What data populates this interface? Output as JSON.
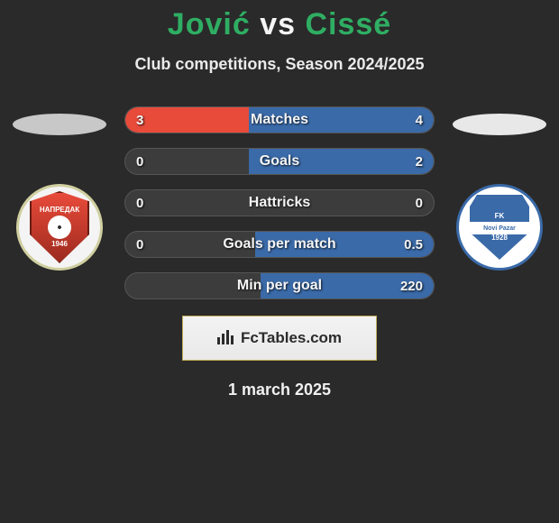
{
  "title": {
    "text": "Jović vs Cissé",
    "left_color": "#2fae63",
    "right_color": "#2fae63",
    "vs_color": "#f5f5f5",
    "fontsize": 34
  },
  "subtitle": {
    "text": "Club competitions, Season 2024/2025",
    "fontsize": 18,
    "color": "#eaeaea"
  },
  "area": {
    "background_color": "#2a2a2a",
    "bar_track_color": "#3c3c3c",
    "bar_border_color": "#555555"
  },
  "left_player": {
    "ellipse_color": "#c8c8c8",
    "crest": {
      "outer_bg": "#f4f4f4",
      "outer_border": "#d0cfa0",
      "shield_color": "#e84b3a",
      "top_text": "НАПРЕДАК",
      "bottom_text": "1946"
    }
  },
  "right_player": {
    "ellipse_color": "#e8e8e8",
    "crest": {
      "outer_bg": "#ffffff",
      "outer_border": "#3a6aa8",
      "shield_color": "#3a6aa8",
      "top_text": "FK",
      "mid_text": "Novi Pazar",
      "year": "1928"
    }
  },
  "bars": [
    {
      "label": "Matches",
      "left_value": "3",
      "right_value": "4",
      "left_pct": 40,
      "right_pct": 60,
      "left_color": "#e84b3a",
      "right_color": "#3a6aa8"
    },
    {
      "label": "Goals",
      "left_value": "0",
      "right_value": "2",
      "left_pct": 0,
      "right_pct": 60,
      "left_color": "#e84b3a",
      "right_color": "#3a6aa8"
    },
    {
      "label": "Hattricks",
      "left_value": "0",
      "right_value": "0",
      "left_pct": 0,
      "right_pct": 0,
      "left_color": "#e84b3a",
      "right_color": "#3a6aa8"
    },
    {
      "label": "Goals per match",
      "left_value": "0",
      "right_value": "0.5",
      "left_pct": 0,
      "right_pct": 58,
      "left_color": "#e84b3a",
      "right_color": "#3a6aa8"
    },
    {
      "label": "Min per goal",
      "left_value": "",
      "right_value": "220",
      "left_pct": 0,
      "right_pct": 56,
      "left_color": "#e84b3a",
      "right_color": "#3a6aa8"
    }
  ],
  "footer": {
    "brand": "FcTables.com",
    "icon_name": "bar-chart-icon",
    "border_color": "#bfae5a",
    "bg": "#efefef"
  },
  "date": {
    "text": "1 march 2025",
    "fontsize": 18
  }
}
